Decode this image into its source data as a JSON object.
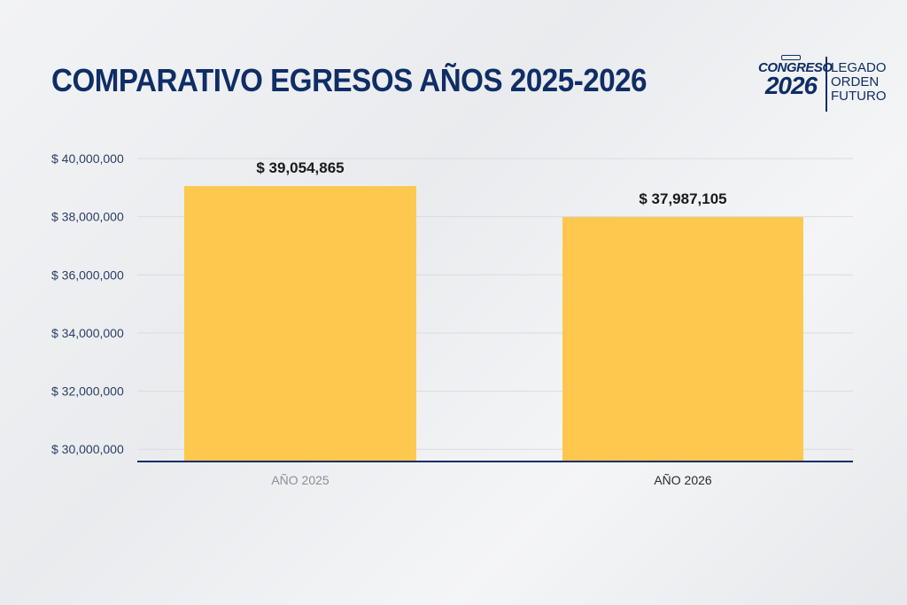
{
  "header": {
    "title": "COMPARATIVO EGRESOS AÑOS 2025-2026"
  },
  "logo": {
    "line1": "CONGRESO",
    "line2": "2026",
    "words": [
      "LEGADO",
      "ORDEN",
      "FUTURO"
    ],
    "color": "#0f2d66"
  },
  "chart_data": {
    "type": "bar",
    "categories": [
      "AÑO 2025",
      "AÑO 2026"
    ],
    "values": [
      39054865,
      37987105
    ],
    "data_labels": [
      "$ 39,054,865",
      "$ 37,987,105"
    ],
    "ylim": [
      29580000,
      40000000
    ],
    "yticks": [
      30000000,
      32000000,
      34000000,
      36000000,
      38000000,
      40000000
    ],
    "ytick_labels": [
      "$ 30,000,000",
      "$ 32,000,000",
      "$ 34,000,000",
      "$ 36,000,000",
      "$ 38,000,000",
      "$ 40,000,000"
    ],
    "grid": true,
    "legend": "none",
    "colors": {
      "bar": "#fec84e",
      "axis": "#0f2d66",
      "tick_text": "#2c3e67",
      "grid": "#d8dbe0"
    }
  }
}
